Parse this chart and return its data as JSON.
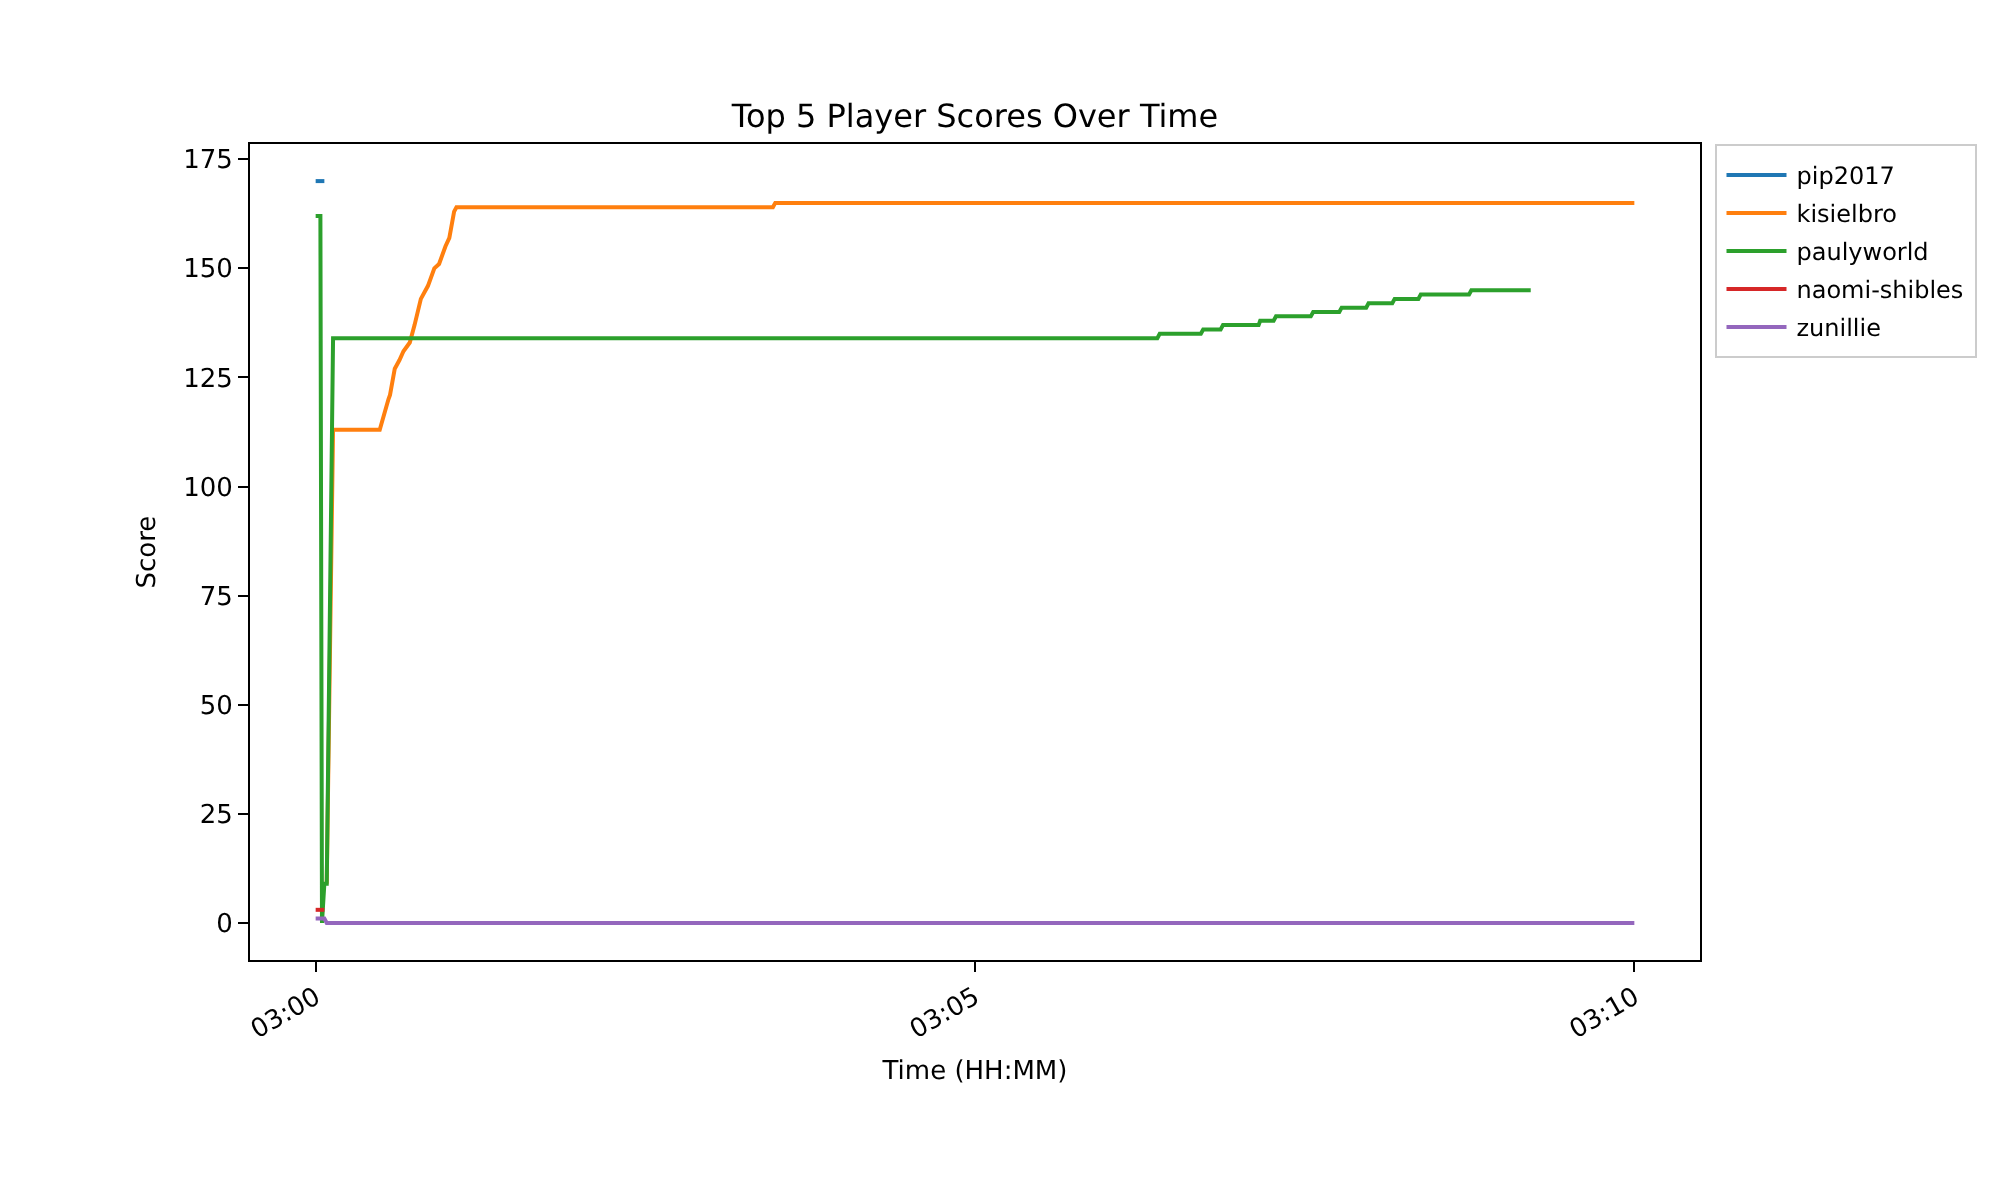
{
  "chart_data": {
    "type": "line",
    "title": "Top 5 Player Scores Over Time",
    "xlabel": "Time (HH:MM)",
    "ylabel": "Score",
    "xlim": [
      2.9917,
      3.175
    ],
    "xticks": [
      {
        "value": 3,
        "label": "03:00"
      },
      {
        "value": 3.0833,
        "label": "03:05"
      },
      {
        "value": 3.1667,
        "label": "03:10"
      }
    ],
    "ylim": [
      -8.5,
      178.5
    ],
    "yticks": [
      0,
      25,
      50,
      75,
      100,
      125,
      150,
      175
    ],
    "legend": "top right",
    "line_style": "solid",
    "series": [
      {
        "name": "pip2017",
        "color": "#1f77b4",
        "x": [
          3.0,
          3.0011
        ],
        "values": [
          170,
          170
        ]
      },
      {
        "name": "kisielbro",
        "color": "#ff7f0e",
        "x": [
          3.0014,
          3.0022,
          3.0081,
          3.0092,
          3.0094,
          3.01,
          3.0106,
          3.0111,
          3.0119,
          3.0125,
          3.0133,
          3.0142,
          3.015,
          3.0156,
          3.0164,
          3.0169,
          3.0175,
          3.0178,
          3.0578,
          3.0581,
          3.1667
        ],
        "values": [
          9,
          113,
          113,
          120,
          121,
          127,
          129,
          131,
          133,
          137,
          143,
          146,
          150,
          151,
          155,
          157,
          163,
          164,
          164,
          165,
          165
        ]
      },
      {
        "name": "paulyworld",
        "color": "#2ca02c",
        "x": [
          3.0,
          3.0006,
          3.0008,
          3.0011,
          3.0014,
          3.0022,
          3.1064,
          3.1067,
          3.1119,
          3.1122,
          3.1144,
          3.1147,
          3.1192,
          3.1194,
          3.1211,
          3.1214,
          3.1258,
          3.1261,
          3.1294,
          3.1297,
          3.1328,
          3.1331,
          3.1361,
          3.1364,
          3.1394,
          3.1397,
          3.1458,
          3.1461,
          3.1536
        ],
        "values": [
          162,
          162,
          0,
          9,
          9,
          134,
          134,
          135,
          135,
          136,
          136,
          137,
          137,
          138,
          138,
          139,
          139,
          140,
          140,
          141,
          141,
          142,
          142,
          143,
          143,
          144,
          144,
          145,
          145
        ]
      },
      {
        "name": "naomi-shibles",
        "color": "#d62728",
        "x": [
          3.0,
          3.0011
        ],
        "values": [
          3,
          3
        ]
      },
      {
        "name": "zunillie",
        "color": "#9467bd",
        "x": [
          3.0,
          3.0011,
          3.0014,
          3.1667
        ],
        "values": [
          1,
          1,
          0,
          0
        ]
      }
    ]
  }
}
